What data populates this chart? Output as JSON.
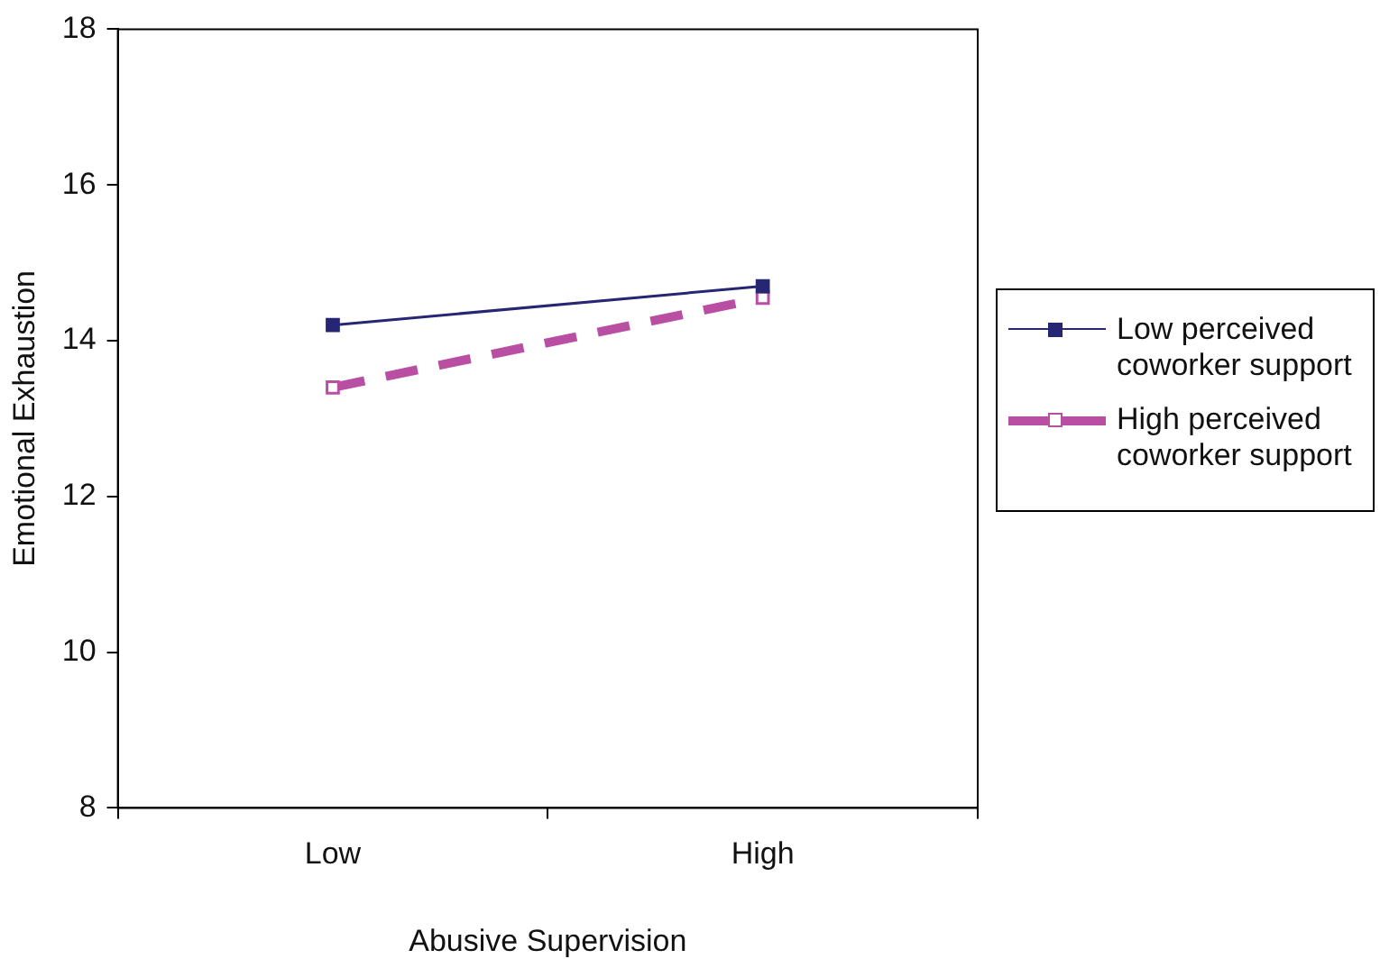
{
  "chart_data": {
    "type": "line",
    "xlabel": "Abusive Supervision",
    "ylabel": "Emotional Exhaustion",
    "categories": [
      "Low",
      "High"
    ],
    "series": [
      {
        "name": "Low perceived coworker support",
        "color": "#262673",
        "values": [
          14.2,
          14.7
        ],
        "line_style": "solid"
      },
      {
        "name": "High perceived coworker support",
        "color": "#b94fa3",
        "values": [
          13.4,
          14.55
        ],
        "line_style": "dashed"
      }
    ],
    "ylim": [
      8,
      18
    ],
    "yticks": [
      8,
      10,
      12,
      14,
      16,
      18
    ],
    "grid": false,
    "legend": "right",
    "marker": "square"
  }
}
